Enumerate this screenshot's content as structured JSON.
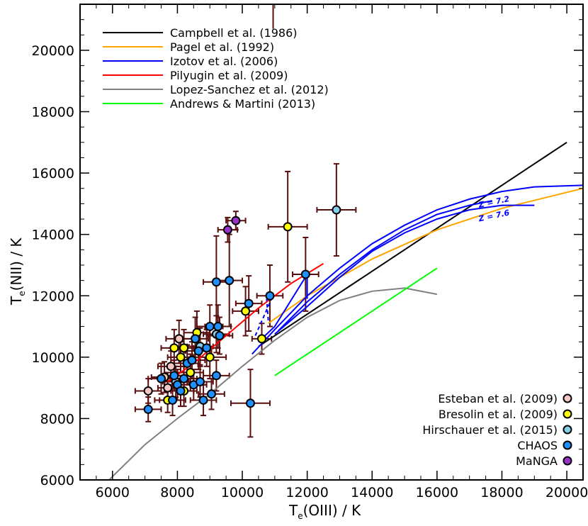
{
  "chart_data": {
    "type": "scatter",
    "xlabel": {
      "main": "T",
      "sub": "e",
      "rest": "(OIII)  /  K"
    },
    "ylabel": {
      "main": "T",
      "sub": "e",
      "rest": "(NII)  /  K"
    },
    "xlim": [
      5000,
      20500
    ],
    "ylim": [
      6000,
      21500
    ],
    "xticks": [
      6000,
      8000,
      10000,
      12000,
      14000,
      16000,
      18000,
      20000
    ],
    "yticks": [
      6000,
      8000,
      10000,
      12000,
      14000,
      16000,
      18000,
      20000
    ],
    "grid": false,
    "legend_lines_position": "top-left",
    "legend_points_position": "bottom-right",
    "relations": [
      {
        "name": "Campbell et al. (1986)",
        "color": "#000000",
        "points": [
          [
            10500,
            10350
          ],
          [
            20000,
            17000
          ]
        ]
      },
      {
        "name": "Pagel et al. (1992)",
        "color": "#ffa500",
        "points": [
          [
            10800,
            11100
          ],
          [
            12000,
            12000
          ],
          [
            14000,
            13200
          ],
          [
            16000,
            14150
          ],
          [
            18000,
            14850
          ],
          [
            20500,
            15500
          ]
        ]
      },
      {
        "name": "Izotov et al. (2006)",
        "color": "#0000ff",
        "points": [
          [
            10300,
            10100
          ],
          [
            11000,
            10900
          ],
          [
            12000,
            12000
          ],
          [
            13000,
            12900
          ],
          [
            14000,
            13700
          ],
          [
            15000,
            14300
          ],
          [
            16000,
            14800
          ],
          [
            17000,
            15150
          ],
          [
            18000,
            15400
          ],
          [
            19000,
            15550
          ],
          [
            20500,
            15600
          ]
        ]
      },
      {
        "name": "Pilyugin et al. (2009)",
        "color": "#ff0000",
        "points": [
          [
            7700,
            9200
          ],
          [
            8500,
            9800
          ],
          [
            9500,
            10700
          ],
          [
            10500,
            11600
          ],
          [
            11500,
            12400
          ],
          [
            12500,
            13050
          ]
        ]
      },
      {
        "name": "Lopez-Sanchez et al. (2012)",
        "color": "#808080",
        "points": [
          [
            5700,
            5800
          ],
          [
            7000,
            7150
          ],
          [
            8000,
            8000
          ],
          [
            9000,
            8800
          ],
          [
            10000,
            9700
          ],
          [
            11000,
            10550
          ],
          [
            12000,
            11300
          ],
          [
            13000,
            11850
          ],
          [
            14000,
            12150
          ],
          [
            15000,
            12250
          ],
          [
            16000,
            12050
          ]
        ]
      },
      {
        "name": "Andrews & Martini (2013)",
        "color": "#00ff00",
        "points": [
          [
            11000,
            9400
          ],
          [
            16000,
            12900
          ]
        ]
      }
    ],
    "izotov_metallicity_curves": [
      {
        "label": "Z = 7.2",
        "points": [
          [
            11100,
            10850
          ],
          [
            12000,
            11800
          ],
          [
            13000,
            12700
          ],
          [
            14000,
            13500
          ],
          [
            15000,
            14150
          ],
          [
            16000,
            14650
          ],
          [
            17000,
            14950
          ],
          [
            17700,
            15100
          ]
        ]
      },
      {
        "label": "Z = 7.6",
        "points": [
          [
            11000,
            10750
          ],
          [
            12000,
            11650
          ],
          [
            13000,
            12600
          ],
          [
            14000,
            13450
          ],
          [
            15000,
            14050
          ],
          [
            16000,
            14500
          ],
          [
            17000,
            14800
          ],
          [
            18000,
            14950
          ],
          [
            19000,
            14950
          ]
        ]
      },
      {
        "label": "",
        "points": [
          [
            12000,
            12700
          ],
          [
            11000,
            11000
          ],
          [
            10500,
            10500
          ]
        ]
      },
      {
        "label": "",
        "points": [
          [
            12000,
            12700
          ],
          [
            12000,
            11900
          ]
        ]
      }
    ],
    "series": [
      {
        "name": "Esteban et al. (2009)",
        "color": "#f4c7c3",
        "points": [
          {
            "x": 7100,
            "y": 8900,
            "xe": 400,
            "ye": 400
          },
          {
            "x": 7600,
            "y": 9350,
            "xe": 400,
            "ye": 500
          },
          {
            "x": 7700,
            "y": 9000,
            "xe": 300,
            "ye": 500
          },
          {
            "x": 7800,
            "y": 9700,
            "xe": 400,
            "ye": 500
          },
          {
            "x": 8050,
            "y": 10600,
            "xe": 400,
            "ye": 600
          }
        ]
      },
      {
        "name": "Bresolin et al. (2009)",
        "color": "#ffff00",
        "points": [
          {
            "x": 7700,
            "y": 8600,
            "xe": 400,
            "ye": 400
          },
          {
            "x": 7900,
            "y": 10300,
            "xe": 400,
            "ye": 600
          },
          {
            "x": 8100,
            "y": 10000,
            "xe": 400,
            "ye": 500
          },
          {
            "x": 8200,
            "y": 10300,
            "xe": 400,
            "ye": 600
          },
          {
            "x": 8200,
            "y": 8900,
            "xe": 400,
            "ye": 500
          },
          {
            "x": 8400,
            "y": 9500,
            "xe": 400,
            "ye": 600
          },
          {
            "x": 8600,
            "y": 10800,
            "xe": 400,
            "ye": 700
          },
          {
            "x": 9000,
            "y": 10000,
            "xe": 500,
            "ye": 700
          },
          {
            "x": 10100,
            "y": 11500,
            "xe": 400,
            "ye": 800
          },
          {
            "x": 10600,
            "y": 10600,
            "xe": 300,
            "ye": 500
          },
          {
            "x": 11400,
            "y": 14250,
            "xe": 600,
            "ye": 1800
          }
        ]
      },
      {
        "name": "Hirschauer et al. (2015)",
        "color": "#87ceeb",
        "points": [
          {
            "x": 7950,
            "y": 9200,
            "xe": 400,
            "ye": 500
          },
          {
            "x": 8700,
            "y": 10350,
            "xe": 400,
            "ye": 600
          },
          {
            "x": 9200,
            "y": 10750,
            "xe": 400,
            "ye": 600
          },
          {
            "x": 12900,
            "y": 14800,
            "xe": 600,
            "ye": 1500
          }
        ]
      },
      {
        "name": "CHAOS",
        "color": "#1e90ff",
        "points": [
          {
            "x": 7100,
            "y": 8300,
            "xe": 400,
            "ye": 400
          },
          {
            "x": 7500,
            "y": 9300,
            "xe": 400,
            "ye": 500
          },
          {
            "x": 7850,
            "y": 8600,
            "xe": 400,
            "ye": 500
          },
          {
            "x": 7900,
            "y": 9400,
            "xe": 400,
            "ye": 500
          },
          {
            "x": 8000,
            "y": 9100,
            "xe": 400,
            "ye": 500
          },
          {
            "x": 8100,
            "y": 8900,
            "xe": 400,
            "ye": 500
          },
          {
            "x": 8200,
            "y": 9300,
            "xe": 400,
            "ye": 500
          },
          {
            "x": 8300,
            "y": 9800,
            "xe": 400,
            "ye": 600
          },
          {
            "x": 8450,
            "y": 9900,
            "xe": 400,
            "ye": 600
          },
          {
            "x": 8500,
            "y": 9100,
            "xe": 400,
            "ye": 500
          },
          {
            "x": 8550,
            "y": 10600,
            "xe": 400,
            "ye": 700
          },
          {
            "x": 8650,
            "y": 10200,
            "xe": 400,
            "ye": 600
          },
          {
            "x": 8700,
            "y": 9200,
            "xe": 400,
            "ye": 500
          },
          {
            "x": 8800,
            "y": 8600,
            "xe": 400,
            "ye": 500
          },
          {
            "x": 8900,
            "y": 10300,
            "xe": 400,
            "ye": 600
          },
          {
            "x": 9000,
            "y": 11000,
            "xe": 400,
            "ye": 700
          },
          {
            "x": 9050,
            "y": 8800,
            "xe": 400,
            "ye": 500
          },
          {
            "x": 9200,
            "y": 12450,
            "xe": 400,
            "ye": 1500
          },
          {
            "x": 9200,
            "y": 9400,
            "xe": 400,
            "ye": 500
          },
          {
            "x": 9250,
            "y": 11000,
            "xe": 400,
            "ye": 700
          },
          {
            "x": 9300,
            "y": 10700,
            "xe": 400,
            "ye": 600
          },
          {
            "x": 9600,
            "y": 12500,
            "xe": 400,
            "ye": 1500
          },
          {
            "x": 10200,
            "y": 11750,
            "xe": 400,
            "ye": 900
          },
          {
            "x": 10250,
            "y": 8500,
            "xe": 600,
            "ye": 1100
          },
          {
            "x": 10850,
            "y": 12000,
            "xe": 400,
            "ye": 1000
          },
          {
            "x": 11950,
            "y": 12700,
            "xe": 400,
            "ye": 1200
          }
        ]
      },
      {
        "name": "MaNGA",
        "color": "#9932cc",
        "points": [
          {
            "x": 9550,
            "y": 14150,
            "xe": 300,
            "ye": 400
          },
          {
            "x": 9800,
            "y": 14450,
            "xe": 300,
            "ye": 300
          }
        ]
      }
    ],
    "extra_errorbars": [
      [
        10950,
        21000,
        20700,
        21600
      ]
    ]
  }
}
